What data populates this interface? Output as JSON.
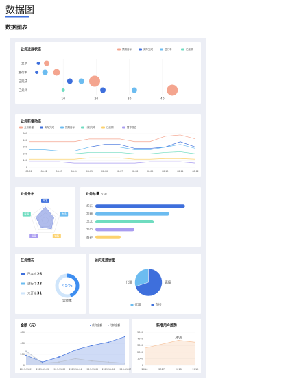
{
  "header": {
    "title": "数据图",
    "subtitle": "数据图表"
  },
  "chart_data": [
    {
      "type": "scatter",
      "title": "业务进展状态",
      "categories": [
        "立项",
        "进行中",
        "已完成",
        "已关闭"
      ],
      "xlim": [
        0,
        50
      ],
      "xticks": [
        10,
        20,
        30,
        40
      ],
      "series": [
        {
          "name": "预期目标",
          "color": "#f4a58f",
          "x": [
            5,
            8,
            19.5,
            43
          ],
          "y": [
            "立项",
            "进行中",
            "已完成",
            "已关闭"
          ],
          "size": [
            4,
            5,
            8,
            8
          ]
        },
        {
          "name": "实际完成",
          "color": "#3e6fdc",
          "x": [
            2.5,
            2,
            12,
            22
          ],
          "y": [
            "立项",
            "进行中",
            "已完成",
            "已关闭"
          ],
          "size": [
            2.5,
            2.5,
            4,
            4
          ]
        },
        {
          "name": "进行中",
          "color": "#6cbcf0",
          "x": [
            4.5,
            15.5,
            31.5
          ],
          "y": [
            "进行中",
            "已完成",
            "已关闭"
          ],
          "size": [
            4,
            4,
            4
          ]
        },
        {
          "name": "已延期",
          "color": "#6fdcc0",
          "x": [
            10
          ],
          "y": [
            "已关闭"
          ],
          "size": [
            2.5
          ]
        }
      ]
    },
    {
      "type": "line",
      "title": "业务新增动态",
      "categories": [
        "08-01",
        "08-02",
        "08-03",
        "08-04",
        "08-05",
        "08-06",
        "08-07",
        "08-08",
        "08-09",
        "08-10",
        "08-11",
        "08-12"
      ],
      "ylim": [
        0,
        500
      ],
      "yticks": [
        0,
        100,
        200,
        300,
        400,
        500
      ],
      "series": [
        {
          "name": "业务新增",
          "color": "#f4a58f",
          "values": [
            380,
            380,
            380,
            380,
            420,
            420,
            420,
            380,
            380,
            460,
            480,
            420
          ]
        },
        {
          "name": "实际完成",
          "color": "#3e6fdc",
          "values": [
            300,
            300,
            300,
            300,
            300,
            340,
            340,
            280,
            280,
            300,
            380,
            300
          ]
        },
        {
          "name": "预期目标",
          "color": "#6cbcf0",
          "values": [
            260,
            260,
            240,
            240,
            300,
            300,
            300,
            260,
            260,
            300,
            340,
            280
          ]
        },
        {
          "name": "计划完成",
          "color": "#6fdcc0",
          "values": [
            200,
            200,
            200,
            200,
            220,
            220,
            220,
            200,
            200,
            220,
            230,
            200
          ]
        },
        {
          "name": "已延期",
          "color": "#fcd26e",
          "values": [
            120,
            120,
            120,
            120,
            140,
            140,
            140,
            120,
            120,
            130,
            130,
            120
          ]
        },
        {
          "name": "暂停推进",
          "color": "#a99cf0",
          "values": [
            80,
            80,
            80,
            60,
            60,
            60,
            60,
            60,
            80,
            80,
            80,
            60
          ]
        }
      ]
    },
    {
      "type": "radar",
      "title": "业务分布",
      "categories": [
        "研发",
        "市场",
        "销售",
        "运营",
        "客服"
      ],
      "values": [
        90,
        60,
        70,
        55,
        65
      ],
      "max": 100,
      "colors": [
        "#3e6fdc",
        "#6cbcf0",
        "#fcd26e",
        "#a99cf0",
        "#6fdcc0"
      ],
      "color": "#7b8fe0"
    },
    {
      "type": "hbar",
      "title": "业务总量",
      "subtitle": "630",
      "categories": [
        "华东",
        "华南",
        "华北",
        "华中",
        "西部"
      ],
      "values": [
        92,
        76,
        60,
        40,
        26
      ],
      "xlim": [
        0,
        100
      ],
      "colors": [
        "#3e6fdc",
        "#6cbcf0",
        "#6fdcc0",
        "#a99cf0",
        "#fcd26e"
      ]
    },
    {
      "type": "donut",
      "title": "任务情况",
      "categories": [
        "已完成",
        "进行中",
        "未开始"
      ],
      "values": [
        26,
        33,
        31
      ],
      "colors": [
        "#3e6fdc",
        "#6cbcf0",
        "#cfe5fb"
      ],
      "value": 45,
      "value_label": "45%",
      "caption": "完成率"
    },
    {
      "type": "pie",
      "title": "访问来源饼图",
      "categories": [
        "代理",
        "直接"
      ],
      "values": [
        30,
        70
      ],
      "colors": [
        "#6cbcf0",
        "#3e6fdc"
      ]
    },
    {
      "type": "area",
      "title": "金额（元）",
      "categories": [
        "2019-11-01",
        "2019-11-02",
        "2019-11-03",
        "2019-11-04",
        "2019-11-05",
        "2019-11-06",
        "2019-11-07"
      ],
      "ylim": [
        0,
        600
      ],
      "yticks": [
        0,
        200,
        400,
        600
      ],
      "series": [
        {
          "name": "成交金额",
          "color": "#3e6fdc",
          "values": [
            180,
            60,
            150,
            280,
            360,
            420,
            520
          ]
        },
        {
          "name": "付款金额",
          "color": "#b8bfcc",
          "values": [
            260,
            40,
            60,
            120,
            80,
            60,
            40
          ]
        }
      ]
    },
    {
      "type": "area1",
      "title": "新增用户趋势",
      "categories": [
        "2016",
        "2017",
        "2018",
        "2019"
      ],
      "values": [
        2600,
        3200,
        3800,
        3500
      ],
      "ylim": [
        0,
        5000
      ],
      "yticks": [
        0,
        1000,
        2000,
        3000,
        4000,
        5000
      ],
      "color": "#f6c39d"
    }
  ]
}
